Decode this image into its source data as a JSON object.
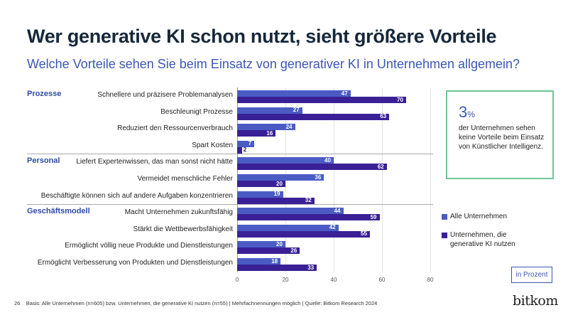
{
  "title": "Wer generative KI schon nutzt, sieht größere Vorteile",
  "subtitle": "Welche Vorteile sehen Sie beim Einsatz von generativer KI in Unternehmen allgemein?",
  "colors": {
    "all": "#4a5cc4",
    "genai": "#3a2096",
    "box_border": "#6cc797"
  },
  "chart_data": {
    "type": "bar",
    "orientation": "horizontal",
    "xlim": [
      0,
      80
    ],
    "xticks": [
      "0",
      "20",
      "40",
      "60",
      "80"
    ],
    "grid": true,
    "groups": [
      {
        "name": "Prozesse",
        "start": 0
      },
      {
        "name": "Personal",
        "start": 4
      },
      {
        "name": "Geschäftsmodell",
        "start": 7
      }
    ],
    "categories": [
      "Schnellere und präzisere Problemanalysen",
      "Beschleunigt Prozesse",
      "Reduziert den Ressourcenverbrauch",
      "Spart Kosten",
      "Liefert Expertenwissen, das man sonst nicht hätte",
      "Vermeidet menschliche Fehler",
      "Beschäftigte können sich auf andere Aufgaben konzentrieren",
      "Macht Unternehmen zukunftsfähig",
      "Stärkt die Wettbewerbsfähigkeit",
      "Ermöglicht völlig neue Produkte und Dienstleistungen",
      "Ermöglicht Verbesserung von Produkten und Dienstleistungen"
    ],
    "series": [
      {
        "name": "Alle Unternehmen",
        "values": [
          47,
          27,
          24,
          7,
          40,
          36,
          19,
          44,
          42,
          20,
          18
        ]
      },
      {
        "name": "Unternehmen, die generative KI nutzen",
        "values": [
          70,
          63,
          16,
          2,
          62,
          20,
          32,
          59,
          55,
          26,
          33
        ]
      }
    ],
    "unit": "in Prozent"
  },
  "callout": {
    "value": "3",
    "unit": "%",
    "text": "der Unternehmen sehen keine Vorteile beim Einsatz von Künstlicher Intelligenz."
  },
  "footer": {
    "page": "26",
    "note": "Basis: Alle Unternehmen (n=605) bzw. Unternehmen, die generative KI nutzen (n=55) | Mehrfachnennungen möglich | Quelle: Bitkom Research 2024"
  },
  "logo": "bitkom"
}
